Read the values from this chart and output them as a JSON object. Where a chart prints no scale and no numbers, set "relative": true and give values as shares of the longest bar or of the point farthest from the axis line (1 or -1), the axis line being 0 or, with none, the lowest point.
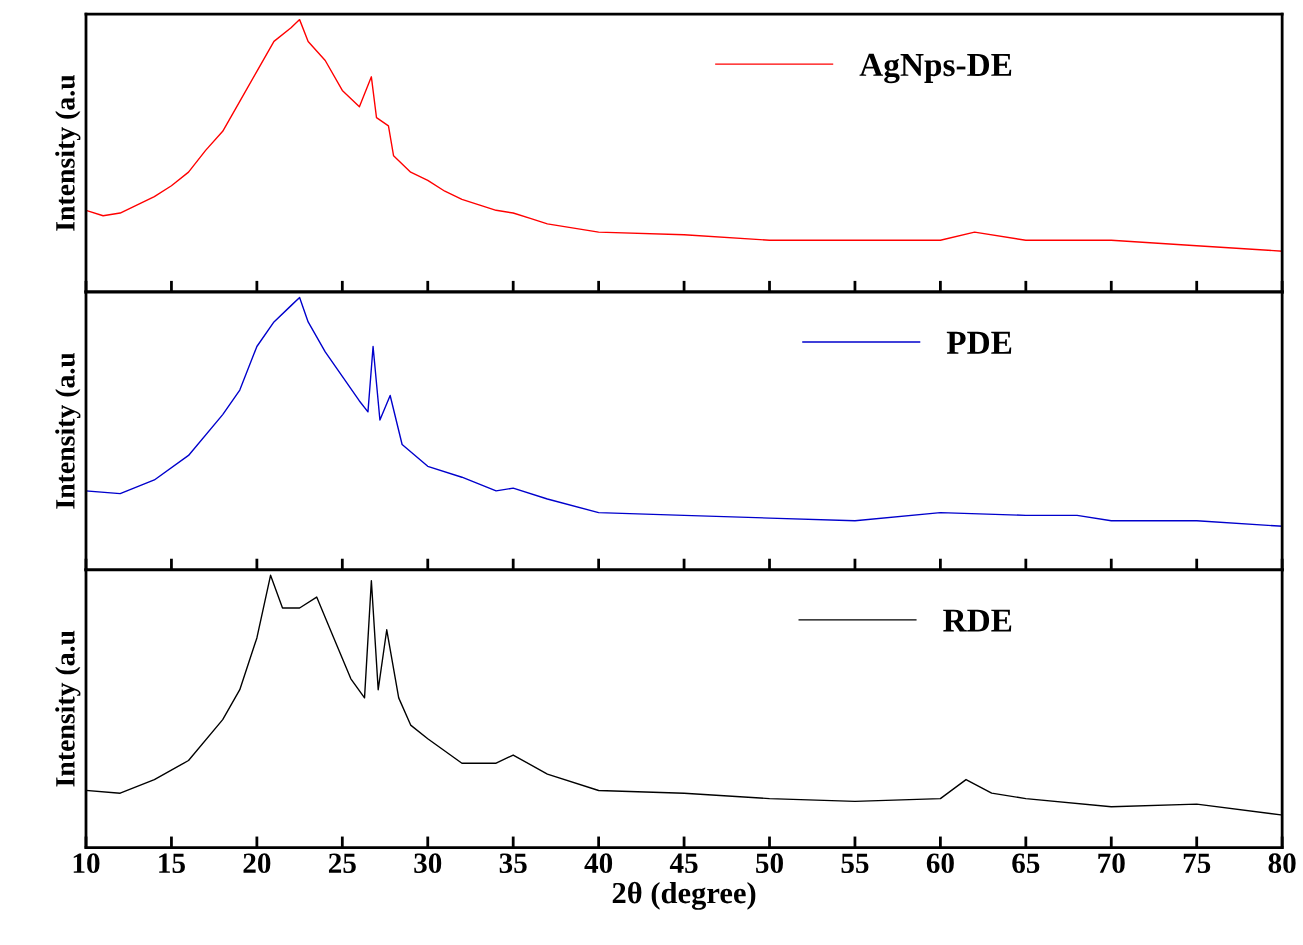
{
  "chart_data": [
    {
      "type": "line",
      "relative": true,
      "ylabel": "Intensity (a.u",
      "xlim": [
        10,
        80
      ],
      "xticks": [
        10,
        15,
        20,
        25,
        30,
        35,
        40,
        45,
        50,
        55,
        60,
        65,
        70,
        75,
        80
      ],
      "tick_labels": false,
      "legend": "top right",
      "series": [
        {
          "name": "AgNps-DE",
          "color": "#ff0000",
          "x": [
            10,
            11,
            12,
            13,
            14,
            15,
            16,
            17,
            18,
            19,
            20,
            21,
            22,
            22.5,
            23,
            24,
            25,
            26,
            26.7,
            27,
            27.7,
            28,
            29,
            30,
            31,
            32,
            33,
            34,
            35,
            36,
            37,
            38,
            40,
            45,
            50,
            55,
            60,
            62,
            65,
            70,
            75,
            80
          ],
          "values": [
            0.3,
            0.28,
            0.29,
            0.32,
            0.35,
            0.39,
            0.44,
            0.52,
            0.59,
            0.7,
            0.81,
            0.92,
            0.97,
            1.0,
            0.92,
            0.85,
            0.74,
            0.68,
            0.79,
            0.64,
            0.61,
            0.5,
            0.44,
            0.41,
            0.37,
            0.34,
            0.32,
            0.3,
            0.29,
            0.27,
            0.25,
            0.24,
            0.22,
            0.21,
            0.19,
            0.19,
            0.19,
            0.22,
            0.19,
            0.19,
            0.17,
            0.15
          ]
        }
      ]
    },
    {
      "type": "line",
      "relative": true,
      "ylabel": "Intensity (a.u",
      "xlim": [
        10,
        80
      ],
      "xticks": [
        10,
        15,
        20,
        25,
        30,
        35,
        40,
        45,
        50,
        55,
        60,
        65,
        70,
        75,
        80
      ],
      "tick_labels": false,
      "legend": "top right",
      "series": [
        {
          "name": "PDE",
          "color": "#0000cc",
          "x": [
            10,
            12,
            14,
            16,
            18,
            19,
            20,
            21,
            22,
            22.5,
            23,
            24,
            25,
            26,
            26.5,
            26.8,
            27.2,
            27.8,
            28.5,
            30,
            32,
            34,
            35,
            37,
            40,
            45,
            50,
            55,
            60,
            65,
            68,
            70,
            75,
            80
          ],
          "values": [
            0.29,
            0.28,
            0.33,
            0.42,
            0.57,
            0.66,
            0.82,
            0.91,
            0.97,
            1.0,
            0.91,
            0.8,
            0.71,
            0.62,
            0.58,
            0.82,
            0.55,
            0.64,
            0.46,
            0.38,
            0.34,
            0.29,
            0.3,
            0.26,
            0.21,
            0.2,
            0.19,
            0.18,
            0.21,
            0.2,
            0.2,
            0.18,
            0.18,
            0.16
          ]
        }
      ]
    },
    {
      "type": "line",
      "relative": true,
      "ylabel": "Intensity (a.u",
      "xlabel": "2θ (degree)",
      "xlim": [
        10,
        80
      ],
      "xticks": [
        10,
        15,
        20,
        25,
        30,
        35,
        40,
        45,
        50,
        55,
        60,
        65,
        70,
        75,
        80
      ],
      "tick_labels": "x",
      "legend": "top right",
      "series": [
        {
          "name": "RDE",
          "color": "#000000",
          "x": [
            10,
            12,
            14,
            16,
            18,
            19,
            20,
            20.8,
            21.5,
            22.5,
            23.5,
            24.5,
            25.5,
            26.3,
            26.7,
            27.1,
            27.6,
            28.3,
            29,
            30,
            32,
            34,
            35,
            37,
            40,
            45,
            50,
            55,
            60,
            61.5,
            63,
            65,
            70,
            75,
            80
          ],
          "values": [
            0.21,
            0.2,
            0.25,
            0.32,
            0.47,
            0.58,
            0.77,
            1.0,
            0.88,
            0.88,
            0.92,
            0.77,
            0.62,
            0.55,
            0.98,
            0.58,
            0.8,
            0.55,
            0.45,
            0.4,
            0.31,
            0.31,
            0.34,
            0.27,
            0.21,
            0.2,
            0.18,
            0.17,
            0.18,
            0.25,
            0.2,
            0.18,
            0.15,
            0.16,
            0.12
          ]
        }
      ]
    }
  ]
}
